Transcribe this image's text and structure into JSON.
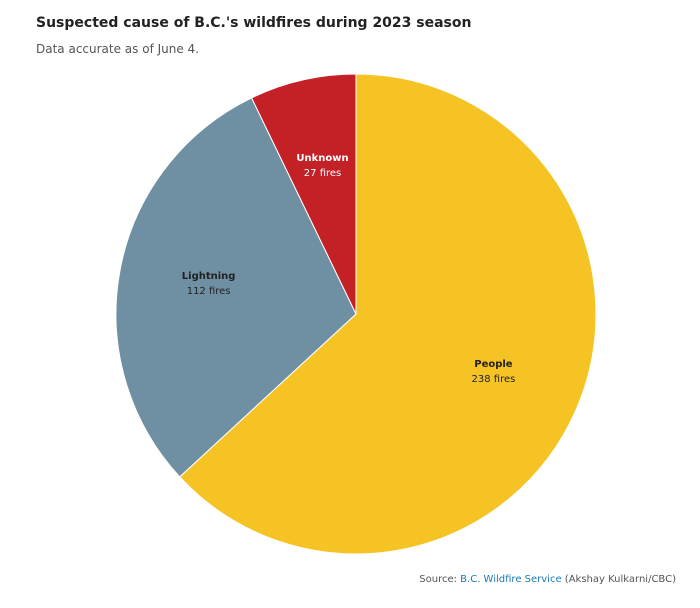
{
  "chart_data": {
    "type": "pie",
    "title": "Suspected cause of B.C.'s wildfires during 2023 season",
    "subtitle": "Data accurate as of June 4.",
    "categories": [
      "People",
      "Lightning",
      "Unknown"
    ],
    "values": [
      238,
      112,
      27
    ],
    "value_labels": [
      "238 fires",
      "112 fires",
      "27 fires"
    ],
    "colors": [
      "#f6c324",
      "#6f8fa3",
      "#c42127"
    ],
    "label_colors": [
      "#222222",
      "#222222",
      "#ffffff"
    ],
    "source": {
      "prefix": "Source:",
      "link": "B.C. Wildfire Service",
      "credit": "(Akshay Kulkarni/CBC)"
    }
  }
}
